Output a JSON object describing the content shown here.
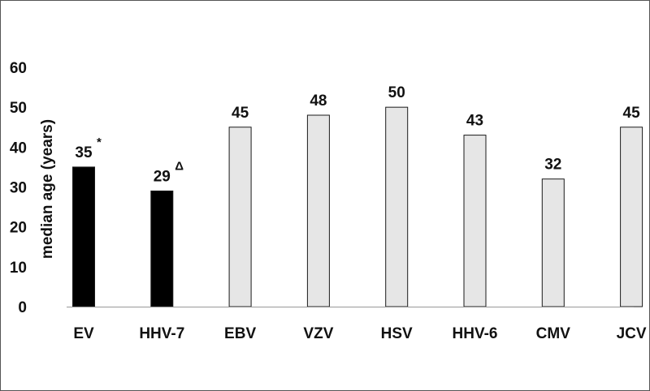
{
  "chart_data": {
    "type": "bar",
    "categories": [
      "EV",
      "HHV-7",
      "EBV",
      "VZV",
      "HSV",
      "HHV-6",
      "CMV",
      "JCV"
    ],
    "values": [
      35,
      29,
      45,
      48,
      50,
      43,
      32,
      45
    ],
    "value_labels": [
      "35",
      "29",
      "45",
      "48",
      "50",
      "43",
      "32",
      "45"
    ],
    "annotations": [
      "*",
      "Δ",
      "",
      "",
      "",
      "",
      "",
      ""
    ],
    "bar_colors": [
      "#000000",
      "#000000",
      "#e6e6e6",
      "#e6e6e6",
      "#e6e6e6",
      "#e6e6e6",
      "#e6e6e6",
      "#e6e6e6"
    ],
    "bar_edge_color": "#1a1a1a",
    "title": "",
    "xlabel": "",
    "ylabel": "median age (years)",
    "ylim": [
      0,
      60
    ],
    "yticks": [
      0,
      10,
      20,
      30,
      40,
      50,
      60
    ],
    "grid": false,
    "legend": "none"
  }
}
